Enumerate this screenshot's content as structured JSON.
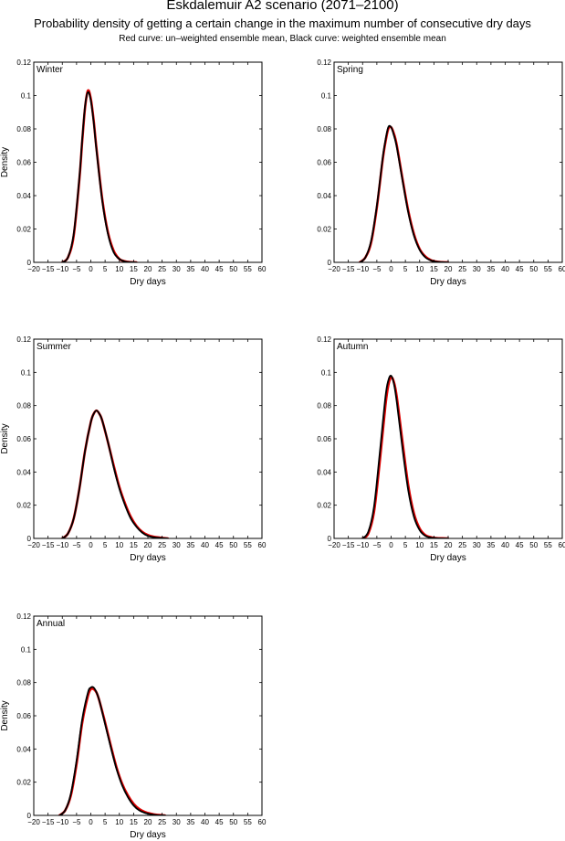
{
  "titles": {
    "main": "Eskdalemuir A2 scenario (2071–2100)",
    "sub": "Probability density of getting a certain change in the maximum number of consecutive dry days",
    "note": "Red curve: un–weighted ensemble mean, Black curve: weighted ensemble mean"
  },
  "colors": {
    "unweighted": "#e00000",
    "weighted": "#000000"
  },
  "chart_data": [
    {
      "type": "line",
      "panel": "Winter",
      "xlabel": "Dry days",
      "ylabel": "Density",
      "xlim": [
        -20,
        60
      ],
      "ylim": [
        0,
        0.12
      ],
      "xticks": [
        -20,
        -15,
        -10,
        -5,
        0,
        5,
        10,
        15,
        20,
        25,
        30,
        35,
        40,
        45,
        50,
        55,
        60
      ],
      "yticks": [
        0,
        0.02,
        0.04,
        0.06,
        0.08,
        0.1,
        0.12
      ],
      "series": [
        {
          "x": [
            -10,
            -8,
            -6,
            -4,
            -3,
            -2,
            -1,
            0,
            1,
            2,
            4,
            6,
            8,
            10,
            12,
            14,
            16
          ],
          "y": [
            0,
            0.003,
            0.016,
            0.05,
            0.073,
            0.093,
            0.103,
            0.098,
            0.085,
            0.068,
            0.038,
            0.018,
            0.007,
            0.002,
            0.0006,
            0.0001,
            0
          ]
        },
        {
          "x": [
            -10,
            -8,
            -6,
            -4,
            -3,
            -2,
            -1,
            0,
            1,
            2,
            4,
            6,
            8,
            10,
            12,
            14,
            16
          ],
          "y": [
            0,
            0.003,
            0.017,
            0.051,
            0.074,
            0.094,
            0.102,
            0.097,
            0.084,
            0.067,
            0.037,
            0.017,
            0.006,
            0.002,
            0.0005,
            0.0001,
            0
          ]
        }
      ]
    },
    {
      "type": "line",
      "panel": "Spring",
      "xlabel": "Dry days",
      "ylabel": "",
      "xlim": [
        -20,
        60
      ],
      "ylim": [
        0,
        0.12
      ],
      "xticks": [
        -20,
        -15,
        -10,
        -5,
        0,
        5,
        10,
        15,
        20,
        25,
        30,
        35,
        40,
        45,
        50,
        55,
        60
      ],
      "yticks": [
        0,
        0.02,
        0.04,
        0.06,
        0.08,
        0.1,
        0.12
      ],
      "series": [
        {
          "x": [
            -11,
            -9,
            -7,
            -5,
            -3,
            -2,
            -1,
            0,
            1,
            2,
            4,
            6,
            8,
            10,
            12,
            14,
            16,
            18,
            20
          ],
          "y": [
            0,
            0.003,
            0.012,
            0.033,
            0.061,
            0.072,
            0.08,
            0.081,
            0.077,
            0.07,
            0.05,
            0.031,
            0.017,
            0.008,
            0.0035,
            0.0013,
            0.0004,
            0.0001,
            0
          ]
        },
        {
          "x": [
            -11,
            -9,
            -7,
            -5,
            -3,
            -2,
            -1,
            0,
            1,
            2,
            4,
            6,
            8,
            10,
            12,
            14,
            16,
            18,
            20
          ],
          "y": [
            0,
            0.003,
            0.013,
            0.034,
            0.062,
            0.073,
            0.081,
            0.081,
            0.076,
            0.069,
            0.049,
            0.03,
            0.016,
            0.0075,
            0.003,
            0.0011,
            0.0003,
            0.0001,
            0
          ]
        }
      ]
    },
    {
      "type": "line",
      "panel": "Summer",
      "xlabel": "Dry days",
      "ylabel": "Density",
      "xlim": [
        -20,
        60
      ],
      "ylim": [
        0,
        0.12
      ],
      "xticks": [
        -20,
        -15,
        -10,
        -5,
        0,
        5,
        10,
        15,
        20,
        25,
        30,
        35,
        40,
        45,
        50,
        55,
        60
      ],
      "yticks": [
        0,
        0.02,
        0.04,
        0.06,
        0.08,
        0.1,
        0.12
      ],
      "series": [
        {
          "x": [
            -10,
            -8,
            -6,
            -4,
            -2,
            0,
            1,
            2,
            3,
            4,
            6,
            8,
            10,
            12,
            14,
            16,
            18,
            20,
            22,
            25,
            27
          ],
          "y": [
            0,
            0.003,
            0.012,
            0.03,
            0.053,
            0.07,
            0.075,
            0.077,
            0.075,
            0.071,
            0.058,
            0.044,
            0.031,
            0.021,
            0.013,
            0.0075,
            0.004,
            0.002,
            0.001,
            0.0003,
            0
          ]
        },
        {
          "x": [
            -10,
            -8,
            -6,
            -4,
            -2,
            0,
            1,
            2,
            3,
            4,
            6,
            8,
            10,
            12,
            14,
            16,
            18,
            20,
            22,
            25,
            27
          ],
          "y": [
            0,
            0.003,
            0.012,
            0.03,
            0.053,
            0.07,
            0.075,
            0.077,
            0.075,
            0.071,
            0.058,
            0.043,
            0.03,
            0.02,
            0.012,
            0.007,
            0.0035,
            0.0015,
            0.0007,
            0.0002,
            0
          ]
        }
      ]
    },
    {
      "type": "line",
      "panel": "Autumn",
      "xlabel": "Dry days",
      "ylabel": "",
      "xlim": [
        -20,
        60
      ],
      "ylim": [
        0,
        0.12
      ],
      "xticks": [
        -20,
        -15,
        -10,
        -5,
        0,
        5,
        10,
        15,
        20,
        25,
        30,
        35,
        40,
        45,
        50,
        55,
        60
      ],
      "yticks": [
        0,
        0.02,
        0.04,
        0.06,
        0.08,
        0.1,
        0.12
      ],
      "series": [
        {
          "x": [
            -10,
            -8,
            -6,
            -4,
            -2,
            -1,
            0,
            1,
            2,
            4,
            6,
            8,
            10,
            12,
            14,
            16,
            18,
            20
          ],
          "y": [
            0,
            0.003,
            0.016,
            0.046,
            0.08,
            0.092,
            0.097,
            0.094,
            0.085,
            0.058,
            0.032,
            0.015,
            0.006,
            0.002,
            0.0007,
            0.0002,
            0.0001,
            0
          ]
        },
        {
          "x": [
            -10,
            -8,
            -6,
            -4,
            -2,
            -1,
            0,
            1,
            2,
            4,
            6,
            8,
            10,
            12,
            14,
            16,
            18,
            20
          ],
          "y": [
            0,
            0.004,
            0.019,
            0.051,
            0.085,
            0.095,
            0.098,
            0.093,
            0.082,
            0.054,
            0.029,
            0.013,
            0.005,
            0.0015,
            0.0005,
            0.0001,
            0,
            0
          ]
        }
      ]
    },
    {
      "type": "line",
      "panel": "Annual",
      "xlabel": "Dry days",
      "ylabel": "Density",
      "xlim": [
        -20,
        60
      ],
      "ylim": [
        0,
        0.12
      ],
      "xticks": [
        -20,
        -15,
        -10,
        -5,
        0,
        5,
        10,
        15,
        20,
        25,
        30,
        35,
        40,
        45,
        50,
        55,
        60
      ],
      "yticks": [
        0,
        0.02,
        0.04,
        0.06,
        0.08,
        0.1,
        0.12
      ],
      "series": [
        {
          "x": [
            -11,
            -9,
            -7,
            -5,
            -3,
            -1,
            0,
            1,
            2,
            3,
            5,
            7,
            9,
            11,
            13,
            15,
            17,
            19,
            21,
            23,
            26
          ],
          "y": [
            0,
            0.003,
            0.012,
            0.031,
            0.056,
            0.072,
            0.076,
            0.076,
            0.074,
            0.069,
            0.056,
            0.042,
            0.029,
            0.019,
            0.012,
            0.007,
            0.0038,
            0.002,
            0.001,
            0.0004,
            0
          ]
        },
        {
          "x": [
            -11,
            -9,
            -7,
            -5,
            -3,
            -1,
            0,
            1,
            2,
            3,
            5,
            7,
            9,
            11,
            13,
            15,
            17,
            19,
            21,
            23,
            26
          ],
          "y": [
            0,
            0.003,
            0.013,
            0.033,
            0.058,
            0.074,
            0.077,
            0.077,
            0.074,
            0.069,
            0.055,
            0.041,
            0.028,
            0.018,
            0.011,
            0.006,
            0.003,
            0.0015,
            0.0007,
            0.0002,
            0
          ]
        }
      ]
    }
  ]
}
